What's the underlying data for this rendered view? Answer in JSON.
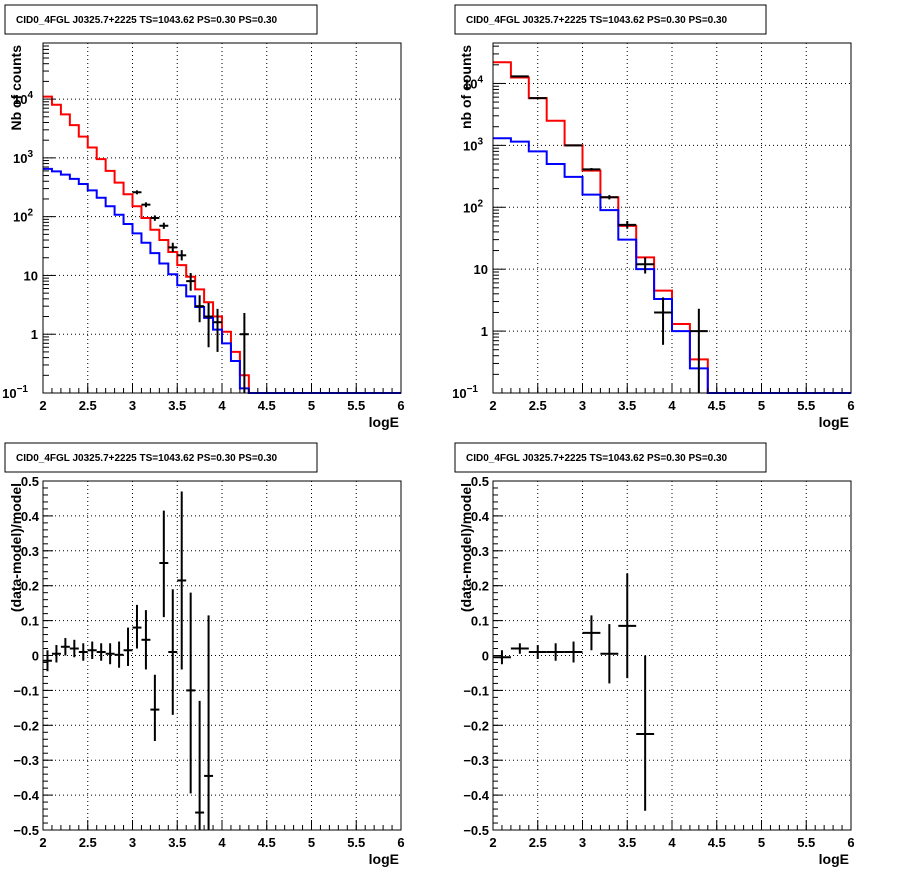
{
  "colors": {
    "data": "#000000",
    "model_total": "#ff0000",
    "model_component": "#0000ff",
    "grid": "#000000"
  },
  "chart_data": [
    {
      "type": "histogram-step",
      "title": "CID0_4FGL J0325.7+2225 TS=1043.62 PS=0.30 PS=0.30",
      "xlabel": "logE",
      "ylabel": "Nb of counts",
      "xlim": [
        2,
        6
      ],
      "log_y": true,
      "ylim": [
        0.1,
        90000
      ],
      "xticks": [
        2,
        2.5,
        3,
        3.5,
        4,
        4.5,
        5,
        5.5,
        6
      ],
      "yticks": [
        {
          "v": 0.1,
          "label": "10",
          "sup": "−1"
        },
        {
          "v": 1,
          "label": "1",
          "sup": ""
        },
        {
          "v": 10,
          "label": "10",
          "sup": ""
        },
        {
          "v": 100,
          "label": "10",
          "sup": "2"
        },
        {
          "v": 1000,
          "label": "10",
          "sup": "3"
        },
        {
          "v": 10000,
          "label": "10",
          "sup": "4"
        }
      ],
      "grid": true,
      "edges": [
        2,
        2.1,
        2.2,
        2.3,
        2.4,
        2.5,
        2.6,
        2.7,
        2.8,
        2.9,
        3,
        3.1,
        3.2,
        3.3,
        3.4,
        3.5,
        3.6,
        3.7,
        3.8,
        3.9,
        4,
        4.1,
        4.2,
        4.3,
        4.4,
        4.5,
        4.6,
        4.7,
        4.8,
        4.9,
        5,
        5.1,
        5.2,
        5.3,
        5.4,
        5.5,
        5.6,
        5.7,
        5.8,
        5.9,
        6
      ],
      "series": [
        {
          "color": "#ff0000",
          "values": [
            11000,
            8000,
            5500,
            3600,
            2300,
            1500,
            950,
            600,
            380,
            240,
            150,
            95,
            60,
            40,
            25,
            15,
            9.5,
            5.8,
            3.5,
            2.0,
            1.1,
            0.5,
            0.2,
            0.1,
            0.1,
            0.1,
            0.1,
            0.1,
            0.1,
            0.1,
            0.1,
            0.1,
            0.1,
            0.1,
            0.1,
            0.1,
            0.1,
            0.1,
            0.1,
            0.1
          ]
        },
        {
          "color": "#0000ff",
          "values": [
            650,
            590,
            520,
            440,
            360,
            280,
            210,
            150,
            108,
            75,
            52,
            36,
            24,
            16,
            10.5,
            6.8,
            4.4,
            2.9,
            1.9,
            1.2,
            0.7,
            0.35,
            0.12,
            0.1,
            0.1,
            0.1,
            0.1,
            0.1,
            0.1,
            0.1,
            0.1,
            0.1,
            0.1,
            0.1,
            0.1,
            0.1,
            0.1,
            0.1,
            0.1,
            0.1
          ]
        }
      ],
      "points": [
        {
          "x": 3.05,
          "y": 260,
          "xerr": 0.05,
          "ylo": 240,
          "yhi": 280
        },
        {
          "x": 3.15,
          "y": 160,
          "xerr": 0.05,
          "ylo": 145,
          "yhi": 175
        },
        {
          "x": 3.25,
          "y": 95,
          "xerr": 0.05,
          "ylo": 85,
          "yhi": 105
        },
        {
          "x": 3.35,
          "y": 70,
          "xerr": 0.05,
          "ylo": 62,
          "yhi": 79
        },
        {
          "x": 3.45,
          "y": 30,
          "xerr": 0.05,
          "ylo": 25,
          "yhi": 36
        },
        {
          "x": 3.55,
          "y": 22,
          "xerr": 0.05,
          "ylo": 18,
          "yhi": 27
        },
        {
          "x": 3.65,
          "y": 8,
          "xerr": 0.05,
          "ylo": 5.5,
          "yhi": 11
        },
        {
          "x": 3.75,
          "y": 3,
          "xerr": 0.05,
          "ylo": 1.6,
          "yhi": 4.6
        },
        {
          "x": 3.85,
          "y": 2,
          "xerr": 0.05,
          "ylo": 0.6,
          "yhi": 3.4
        },
        {
          "x": 3.95,
          "y": 1.6,
          "xerr": 0.05,
          "ylo": 0.5,
          "yhi": 2.7
        },
        {
          "x": 4.25,
          "y": 1,
          "xerr": 0.05,
          "ylo": 0.1,
          "yhi": 2.3
        }
      ]
    },
    {
      "type": "histogram-step",
      "title": "CID0_4FGL J0325.7+2225 TS=1043.62 PS=0.30 PS=0.30",
      "xlabel": "logE",
      "ylabel": "nb of counts",
      "xlim": [
        2,
        6
      ],
      "log_y": true,
      "ylim": [
        0.1,
        45000
      ],
      "xticks": [
        2,
        2.5,
        3,
        3.5,
        4,
        4.5,
        5,
        5.5,
        6
      ],
      "yticks": [
        {
          "v": 0.1,
          "label": "10",
          "sup": "−1"
        },
        {
          "v": 1,
          "label": "1",
          "sup": ""
        },
        {
          "v": 10,
          "label": "10",
          "sup": ""
        },
        {
          "v": 100,
          "label": "10",
          "sup": "2"
        },
        {
          "v": 1000,
          "label": "10",
          "sup": "3"
        },
        {
          "v": 10000,
          "label": "10",
          "sup": "4"
        }
      ],
      "grid": true,
      "edges": [
        2,
        2.2,
        2.4,
        2.6,
        2.8,
        3,
        3.2,
        3.4,
        3.6,
        3.8,
        4,
        4.2,
        4.4,
        4.6,
        4.8,
        5,
        5.2,
        5.4,
        5.6,
        5.8,
        6
      ],
      "series": [
        {
          "color": "#ff0000",
          "values": [
            22000,
            12500,
            5800,
            2500,
            1000,
            390,
            145,
            50,
            15.5,
            4.5,
            1.3,
            0.35,
            0.1,
            0.1,
            0.1,
            0.1,
            0.1,
            0.1,
            0.1,
            0.1
          ]
        },
        {
          "color": "#0000ff",
          "values": [
            1300,
            1150,
            800,
            500,
            310,
            160,
            90,
            30,
            10,
            3.3,
            1.0,
            0.25,
            0.1,
            0.1,
            0.1,
            0.1,
            0.1,
            0.1,
            0.1,
            0.1
          ]
        }
      ],
      "points": [
        {
          "x": 2.3,
          "y": 13000,
          "xerr": 0.1,
          "ylo": 12800,
          "yhi": 13200
        },
        {
          "x": 2.5,
          "y": 5800,
          "xerr": 0.1,
          "ylo": 5700,
          "yhi": 5900
        },
        {
          "x": 2.9,
          "y": 1000,
          "xerr": 0.1,
          "ylo": 970,
          "yhi": 1030
        },
        {
          "x": 3.1,
          "y": 410,
          "xerr": 0.1,
          "ylo": 390,
          "yhi": 430
        },
        {
          "x": 3.3,
          "y": 145,
          "xerr": 0.1,
          "ylo": 134,
          "yhi": 157
        },
        {
          "x": 3.5,
          "y": 52,
          "xerr": 0.1,
          "ylo": 45,
          "yhi": 60
        },
        {
          "x": 3.7,
          "y": 12,
          "xerr": 0.1,
          "ylo": 8.5,
          "yhi": 15.5
        },
        {
          "x": 3.9,
          "y": 2,
          "xerr": 0.1,
          "ylo": 0.6,
          "yhi": 3.5
        },
        {
          "x": 4.3,
          "y": 1,
          "xerr": 0.1,
          "ylo": 0.1,
          "yhi": 2.3
        }
      ]
    },
    {
      "type": "scatter-errorbars",
      "title": "CID0_4FGL J0325.7+2225 TS=1043.62 PS=0.30 PS=0.30",
      "xlabel": "logE",
      "ylabel": "(data-model)/model",
      "xlim": [
        2,
        6
      ],
      "ylim": [
        -0.5,
        0.5
      ],
      "xticks": [
        2,
        2.5,
        3,
        3.5,
        4,
        4.5,
        5,
        5.5,
        6
      ],
      "yticks": [
        -0.5,
        -0.4,
        -0.3,
        -0.2,
        -0.1,
        0,
        0.1,
        0.2,
        0.3,
        0.4,
        0.5
      ],
      "ytick_labels": [
        "−0.5",
        "−0.4",
        "−0.3",
        "−0.2",
        "−0.1",
        "0",
        "0.1",
        "0.2",
        "0.3",
        "0.4",
        "0.5"
      ],
      "grid": true,
      "points": [
        {
          "x": 2.05,
          "y": -0.015,
          "xerr": 0.05,
          "ylo": -0.045,
          "yhi": 0.015
        },
        {
          "x": 2.15,
          "y": 0.005,
          "xerr": 0.05,
          "ylo": -0.02,
          "yhi": 0.03
        },
        {
          "x": 2.25,
          "y": 0.025,
          "xerr": 0.05,
          "ylo": 0.0,
          "yhi": 0.05
        },
        {
          "x": 2.35,
          "y": 0.02,
          "xerr": 0.05,
          "ylo": -0.005,
          "yhi": 0.045
        },
        {
          "x": 2.45,
          "y": 0.01,
          "xerr": 0.05,
          "ylo": -0.015,
          "yhi": 0.035
        },
        {
          "x": 2.55,
          "y": 0.015,
          "xerr": 0.05,
          "ylo": -0.01,
          "yhi": 0.04
        },
        {
          "x": 2.65,
          "y": 0.01,
          "xerr": 0.05,
          "ylo": -0.015,
          "yhi": 0.035
        },
        {
          "x": 2.75,
          "y": 0.005,
          "xerr": 0.05,
          "ylo": -0.025,
          "yhi": 0.035
        },
        {
          "x": 2.85,
          "y": 0.002,
          "xerr": 0.05,
          "ylo": -0.035,
          "yhi": 0.04
        },
        {
          "x": 2.95,
          "y": 0.015,
          "xerr": 0.05,
          "ylo": -0.03,
          "yhi": 0.08
        },
        {
          "x": 3.05,
          "y": 0.08,
          "xerr": 0.05,
          "ylo": 0.02,
          "yhi": 0.145
        },
        {
          "x": 3.15,
          "y": 0.045,
          "xerr": 0.05,
          "ylo": -0.04,
          "yhi": 0.13
        },
        {
          "x": 3.25,
          "y": -0.155,
          "xerr": 0.05,
          "ylo": -0.245,
          "yhi": -0.055
        },
        {
          "x": 3.35,
          "y": 0.265,
          "xerr": 0.05,
          "ylo": 0.11,
          "yhi": 0.415
        },
        {
          "x": 3.45,
          "y": 0.01,
          "xerr": 0.05,
          "ylo": -0.17,
          "yhi": 0.19
        },
        {
          "x": 3.55,
          "y": 0.215,
          "xerr": 0.05,
          "ylo": -0.04,
          "yhi": 0.47
        },
        {
          "x": 3.65,
          "y": -0.1,
          "xerr": 0.05,
          "ylo": -0.395,
          "yhi": 0.18
        },
        {
          "x": 3.75,
          "y": -0.45,
          "xerr": 0.05,
          "ylo": -0.5,
          "yhi": -0.13
        },
        {
          "x": 3.85,
          "y": -0.345,
          "xerr": 0.05,
          "ylo": -0.5,
          "yhi": 0.115
        }
      ]
    },
    {
      "type": "scatter-errorbars",
      "title": "CID0_4FGL J0325.7+2225 TS=1043.62 PS=0.30 PS=0.30",
      "xlabel": "logE",
      "ylabel": "(data-model)/model",
      "xlim": [
        2,
        6
      ],
      "ylim": [
        -0.5,
        0.5
      ],
      "xticks": [
        2,
        2.5,
        3,
        3.5,
        4,
        4.5,
        5,
        5.5,
        6
      ],
      "yticks": [
        -0.5,
        -0.4,
        -0.3,
        -0.2,
        -0.1,
        0,
        0.1,
        0.2,
        0.3,
        0.4,
        0.5
      ],
      "ytick_labels": [
        "−0.5",
        "−0.4",
        "−0.3",
        "−0.2",
        "−0.1",
        "0",
        "0.1",
        "0.2",
        "0.3",
        "0.4",
        "0.5"
      ],
      "grid": true,
      "points": [
        {
          "x": 2.1,
          "y": -0.005,
          "xerr": 0.1,
          "ylo": -0.025,
          "yhi": 0.015
        },
        {
          "x": 2.3,
          "y": 0.02,
          "xerr": 0.1,
          "ylo": 0.005,
          "yhi": 0.035
        },
        {
          "x": 2.5,
          "y": 0.01,
          "xerr": 0.1,
          "ylo": -0.01,
          "yhi": 0.03
        },
        {
          "x": 2.7,
          "y": 0.01,
          "xerr": 0.1,
          "ylo": -0.015,
          "yhi": 0.035
        },
        {
          "x": 2.9,
          "y": 0.01,
          "xerr": 0.1,
          "ylo": -0.02,
          "yhi": 0.04
        },
        {
          "x": 3.1,
          "y": 0.065,
          "xerr": 0.1,
          "ylo": 0.015,
          "yhi": 0.115
        },
        {
          "x": 3.3,
          "y": 0.005,
          "xerr": 0.1,
          "ylo": -0.08,
          "yhi": 0.09
        },
        {
          "x": 3.5,
          "y": 0.085,
          "xerr": 0.1,
          "ylo": -0.065,
          "yhi": 0.235
        },
        {
          "x": 3.7,
          "y": -0.225,
          "xerr": 0.1,
          "ylo": -0.445,
          "yhi": 0.0
        }
      ]
    }
  ]
}
